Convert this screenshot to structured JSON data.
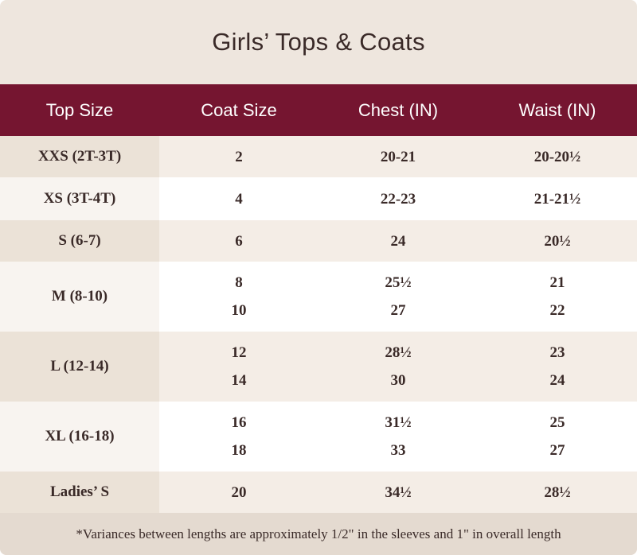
{
  "title": "Girls’ Tops & Coats",
  "columns": [
    "Top Size",
    "Coat Size",
    "Chest (IN)",
    "Waist (IN)"
  ],
  "rows": [
    {
      "top": "XXS (2T-3T)",
      "coat": [
        "2"
      ],
      "chest": [
        "20-21"
      ],
      "waist": [
        "20-20½"
      ]
    },
    {
      "top": "XS (3T-4T)",
      "coat": [
        "4"
      ],
      "chest": [
        "22-23"
      ],
      "waist": [
        "21-21½"
      ]
    },
    {
      "top": "S (6-7)",
      "coat": [
        "6"
      ],
      "chest": [
        "24"
      ],
      "waist": [
        "20½"
      ]
    },
    {
      "top": "M (8-10)",
      "coat": [
        "8",
        "10"
      ],
      "chest": [
        "25½",
        "27"
      ],
      "waist": [
        "21",
        "22"
      ]
    },
    {
      "top": "L (12-14)",
      "coat": [
        "12",
        "14"
      ],
      "chest": [
        "28½",
        "30"
      ],
      "waist": [
        "23",
        "24"
      ]
    },
    {
      "top": "XL (16-18)",
      "coat": [
        "16",
        "18"
      ],
      "chest": [
        "31½",
        "33"
      ],
      "waist": [
        "25",
        "27"
      ]
    },
    {
      "top": "Ladies’ S",
      "coat": [
        "20"
      ],
      "chest": [
        "34½"
      ],
      "waist": [
        "28½"
      ]
    }
  ],
  "footnote": "*Variances between lengths are approximately 1/2\" in the sleeves and 1\" in overall length"
}
